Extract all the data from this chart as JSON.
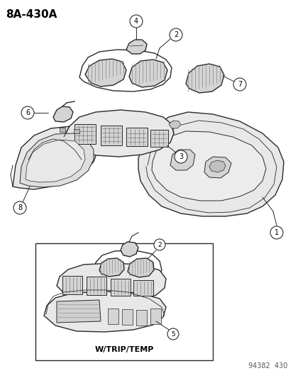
{
  "title": "8A–430A",
  "title_text": "8A-430A",
  "bg_color": "#ffffff",
  "line_color": "#2a2a2a",
  "label_color": "#000000",
  "fig_width": 4.14,
  "fig_height": 5.33,
  "dpi": 100,
  "footer_left": "W/TRIP/TEMP",
  "footer_right": "94382  430",
  "gray_fill": "#e8e8e8",
  "gray_mid": "#d4d4d4",
  "gray_dark": "#b8b8b8",
  "white_fill": "#f5f5f5"
}
